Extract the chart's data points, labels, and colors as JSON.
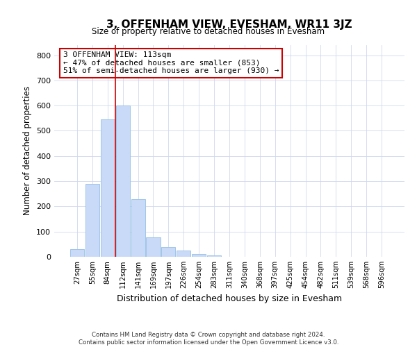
{
  "title": "3, OFFENHAM VIEW, EVESHAM, WR11 3JZ",
  "subtitle": "Size of property relative to detached houses in Evesham",
  "xlabel": "Distribution of detached houses by size in Evesham",
  "ylabel": "Number of detached properties",
  "bar_labels": [
    "27sqm",
    "55sqm",
    "84sqm",
    "112sqm",
    "141sqm",
    "169sqm",
    "197sqm",
    "226sqm",
    "254sqm",
    "283sqm",
    "311sqm",
    "340sqm",
    "368sqm",
    "397sqm",
    "425sqm",
    "454sqm",
    "482sqm",
    "511sqm",
    "539sqm",
    "568sqm",
    "596sqm"
  ],
  "bar_values": [
    30,
    290,
    545,
    600,
    228,
    78,
    38,
    25,
    12,
    5,
    0,
    0,
    0,
    0,
    0,
    0,
    0,
    0,
    0,
    0,
    0
  ],
  "bar_color": "#c9daf8",
  "bar_edge_color": "#9fc5e8",
  "property_line_label": "3 OFFENHAM VIEW: 113sqm",
  "annotation_line1": "← 47% of detached houses are smaller (853)",
  "annotation_line2": "51% of semi-detached houses are larger (930) →",
  "annotation_box_color": "#ffffff",
  "annotation_box_edge_color": "#cc0000",
  "vline_color": "#cc0000",
  "ylim": [
    0,
    840
  ],
  "yticks": [
    0,
    100,
    200,
    300,
    400,
    500,
    600,
    700,
    800
  ],
  "footer_line1": "Contains HM Land Registry data © Crown copyright and database right 2024.",
  "footer_line2": "Contains public sector information licensed under the Open Government Licence v3.0."
}
